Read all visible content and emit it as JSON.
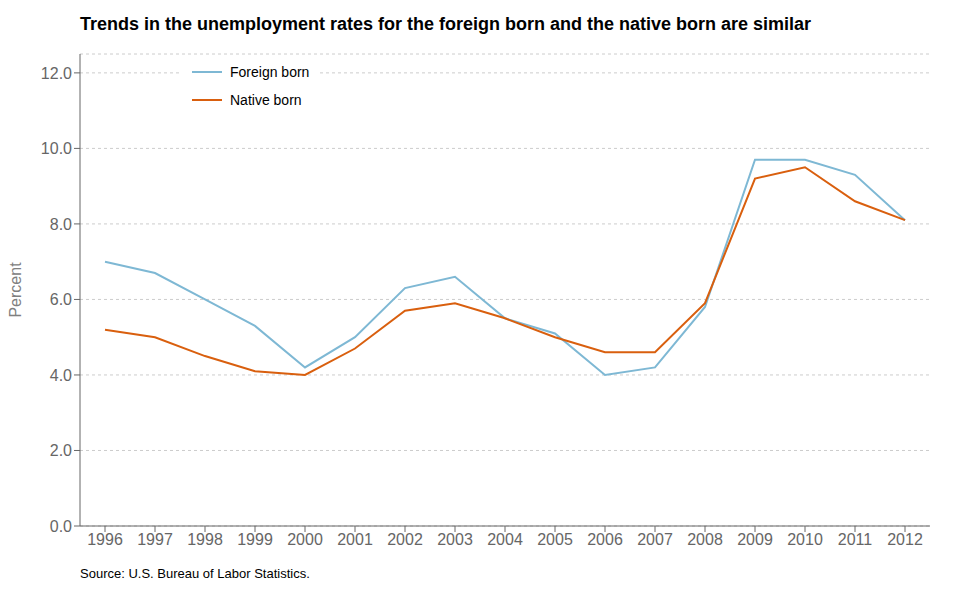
{
  "chart_data": {
    "type": "line",
    "title": "Trends in the unemployment rates for the foreign born and the native born are similar",
    "ylabel": "Percent",
    "source": "Source: U.S. Bureau of Labor Statistics.",
    "x": [
      1996,
      1997,
      1998,
      1999,
      2000,
      2001,
      2002,
      2003,
      2004,
      2005,
      2006,
      2007,
      2008,
      2009,
      2010,
      2011,
      2012
    ],
    "series": [
      {
        "name": "Foreign born",
        "color": "#7eb8d4",
        "values": [
          7.0,
          6.7,
          6.0,
          5.3,
          4.2,
          5.0,
          6.3,
          6.6,
          5.5,
          5.1,
          4.0,
          4.2,
          5.8,
          9.7,
          9.7,
          9.3,
          8.1
        ]
      },
      {
        "name": "Native born",
        "color": "#d95f0e",
        "values": [
          5.2,
          5.0,
          4.5,
          4.1,
          4.0,
          4.7,
          5.7,
          5.9,
          5.5,
          5.0,
          4.6,
          4.6,
          5.9,
          9.2,
          9.5,
          8.6,
          8.1
        ]
      }
    ],
    "xlim": [
      1995.5,
      2012.5
    ],
    "xticks": [
      1996,
      1997,
      1998,
      1999,
      2000,
      2001,
      2002,
      2003,
      2004,
      2005,
      2006,
      2007,
      2008,
      2009,
      2010,
      2011,
      2012
    ],
    "ylim": [
      0,
      12.5
    ],
    "yticks": [
      {
        "value": 0,
        "label": "0.0"
      },
      {
        "value": 2,
        "label": "2.0"
      },
      {
        "value": 4,
        "label": "4.0"
      },
      {
        "value": 6,
        "label": "6.0"
      },
      {
        "value": 8,
        "label": "8.0"
      },
      {
        "value": 10,
        "label": "10.0"
      },
      {
        "value": 12,
        "label": "12.0"
      }
    ],
    "grid": "y",
    "legend": "upper left"
  }
}
